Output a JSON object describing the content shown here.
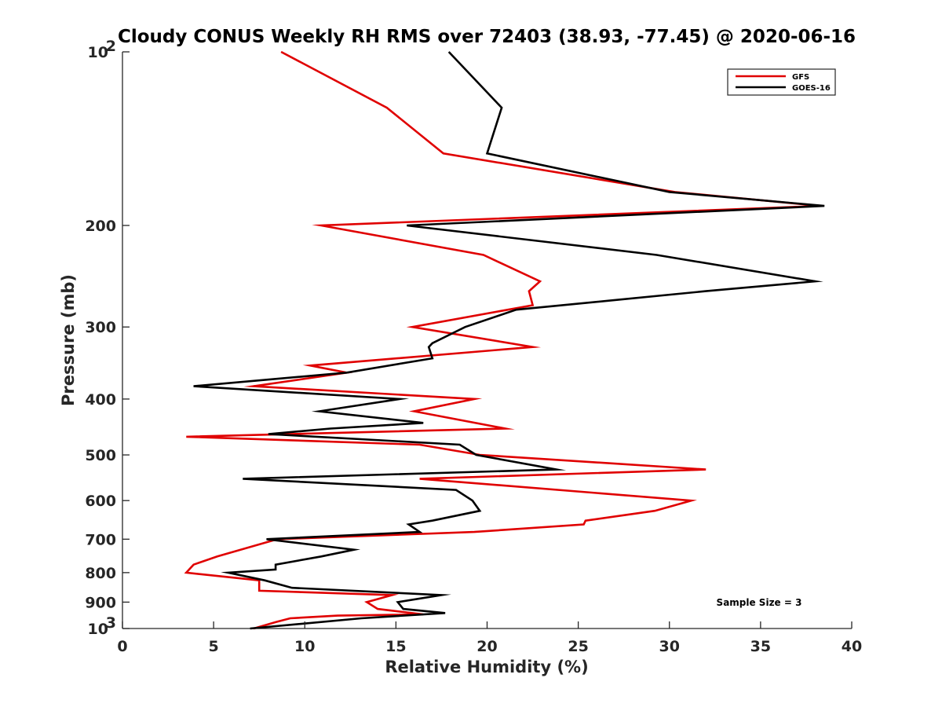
{
  "chart_data": {
    "type": "line",
    "title": "Cloudy CONUS Weekly RH RMS over 72403 (38.93, -77.45) @ 2020-06-16",
    "xlabel": "Relative Humidity (%)",
    "ylabel": "Pressure (mb)",
    "xlim": [
      0,
      40
    ],
    "ylim": [
      100,
      1000
    ],
    "y_scale": "log",
    "y_reversed": true,
    "x_ticks": [
      "0",
      "5",
      "10",
      "15",
      "20",
      "25",
      "30",
      "35",
      "40"
    ],
    "y_ticks": [
      {
        "value": 100,
        "label": "10",
        "sup": "2"
      },
      {
        "value": 200,
        "label": "200",
        "sup": ""
      },
      {
        "value": 300,
        "label": "300",
        "sup": ""
      },
      {
        "value": 400,
        "label": "400",
        "sup": ""
      },
      {
        "value": 500,
        "label": "500",
        "sup": ""
      },
      {
        "value": 600,
        "label": "600",
        "sup": ""
      },
      {
        "value": 700,
        "label": "700",
        "sup": ""
      },
      {
        "value": 800,
        "label": "800",
        "sup": ""
      },
      {
        "value": 900,
        "label": "900",
        "sup": ""
      },
      {
        "value": 1000,
        "label": "10",
        "sup": "3"
      }
    ],
    "grid": false,
    "legend_position": "top-right",
    "annotation": "Sample Size = 3",
    "series": [
      {
        "name": "GFS",
        "color": "#e00000",
        "points": [
          [
            8.7,
            100
          ],
          [
            14.5,
            125
          ],
          [
            17.6,
            150
          ],
          [
            30.3,
            175
          ],
          [
            38.3,
            185
          ],
          [
            10.9,
            200
          ],
          [
            19.8,
            225
          ],
          [
            22.9,
            250
          ],
          [
            22.3,
            260
          ],
          [
            22.5,
            275
          ],
          [
            15.9,
            300
          ],
          [
            22.5,
            325
          ],
          [
            10.3,
            350
          ],
          [
            12.3,
            360
          ],
          [
            7.2,
            380
          ],
          [
            19.3,
            400
          ],
          [
            16.0,
            420
          ],
          [
            21.0,
            450
          ],
          [
            3.5,
            465
          ],
          [
            16.3,
            480
          ],
          [
            19.6,
            500
          ],
          [
            32.0,
            530
          ],
          [
            16.3,
            550
          ],
          [
            31.2,
            600
          ],
          [
            29.2,
            625
          ],
          [
            25.4,
            650
          ],
          [
            25.3,
            660
          ],
          [
            19.3,
            680
          ],
          [
            8.5,
            700
          ],
          [
            5.2,
            750
          ],
          [
            3.9,
            775
          ],
          [
            3.5,
            800
          ],
          [
            7.5,
            825
          ],
          [
            7.5,
            860
          ],
          [
            14.8,
            875
          ],
          [
            13.4,
            900
          ],
          [
            14.0,
            925
          ],
          [
            16.5,
            945
          ],
          [
            11.8,
            950
          ],
          [
            9.2,
            960
          ],
          [
            8.4,
            975
          ],
          [
            7.2,
            1000
          ]
        ]
      },
      {
        "name": "GOES-16",
        "color": "#000000",
        "points": [
          [
            17.9,
            100
          ],
          [
            20.8,
            125
          ],
          [
            20.0,
            150
          ],
          [
            30.0,
            175
          ],
          [
            38.5,
            185
          ],
          [
            15.6,
            200
          ],
          [
            29.3,
            225
          ],
          [
            38.0,
            250
          ],
          [
            32.0,
            260
          ],
          [
            21.6,
            280
          ],
          [
            18.8,
            300
          ],
          [
            17.0,
            320
          ],
          [
            16.8,
            325
          ],
          [
            17.0,
            340
          ],
          [
            12.3,
            360
          ],
          [
            3.9,
            380
          ],
          [
            15.2,
            400
          ],
          [
            10.8,
            420
          ],
          [
            16.5,
            440
          ],
          [
            11.4,
            450
          ],
          [
            8.0,
            460
          ],
          [
            18.5,
            480
          ],
          [
            19.4,
            500
          ],
          [
            23.8,
            530
          ],
          [
            6.6,
            550
          ],
          [
            18.3,
            575
          ],
          [
            19.2,
            600
          ],
          [
            19.6,
            625
          ],
          [
            17.0,
            650
          ],
          [
            15.7,
            660
          ],
          [
            16.3,
            680
          ],
          [
            7.9,
            700
          ],
          [
            12.7,
            730
          ],
          [
            10.9,
            750
          ],
          [
            8.4,
            775
          ],
          [
            8.4,
            790
          ],
          [
            5.8,
            800
          ],
          [
            7.8,
            825
          ],
          [
            9.3,
            850
          ],
          [
            17.5,
            875
          ],
          [
            15.1,
            900
          ],
          [
            15.4,
            925
          ],
          [
            17.7,
            940
          ],
          [
            13.1,
            960
          ],
          [
            7.0,
            1000
          ]
        ]
      }
    ]
  }
}
